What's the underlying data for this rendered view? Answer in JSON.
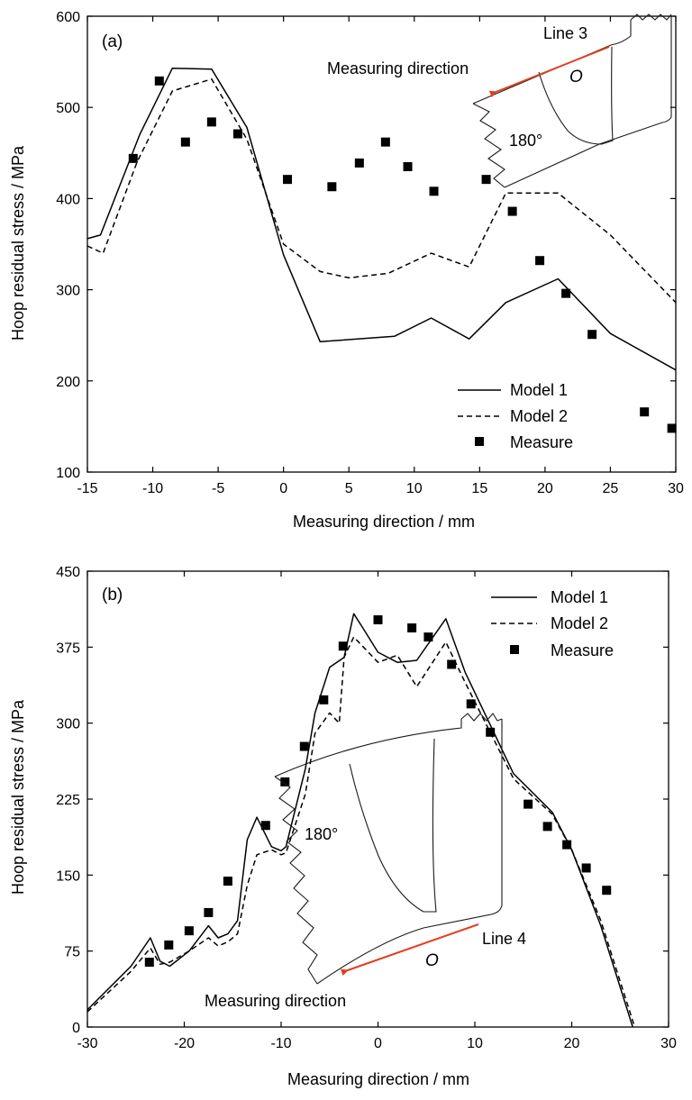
{
  "chart_data": [
    {
      "type": "line",
      "panel_label": "(a)",
      "xlabel": "Measuring direction / mm",
      "ylabel": "Hoop  residual stress / MPa",
      "xlim": [
        -15,
        30
      ],
      "ylim": [
        100,
        600
      ],
      "xticks": [
        -15,
        -10,
        -5,
        0,
        5,
        10,
        15,
        20,
        25,
        30
      ],
      "yticks": [
        100,
        200,
        300,
        400,
        500,
        600
      ],
      "grid": false,
      "legend_position": "bottom-right",
      "series": [
        {
          "name": "Model 1",
          "style": "solid",
          "x": [
            -15,
            -14,
            -11,
            -8.5,
            -5.5,
            -2.8,
            0,
            2.8,
            8.5,
            11.3,
            14.2,
            17,
            21,
            25,
            30
          ],
          "y": [
            356,
            360,
            470,
            543,
            542,
            478,
            338,
            243,
            249,
            269,
            246,
            286,
            312,
            252,
            212
          ]
        },
        {
          "name": "Model 2",
          "style": "dashed",
          "x": [
            -15,
            -13.8,
            -11.2,
            -8.5,
            -5.5,
            -2.8,
            0,
            2.8,
            5,
            8,
            11.3,
            14.2,
            17,
            21,
            25,
            30
          ],
          "y": [
            348,
            340,
            440,
            518,
            531,
            465,
            350,
            320,
            313,
            318,
            340,
            325,
            406,
            406,
            360,
            286
          ]
        },
        {
          "name": "Measure",
          "style": "markers",
          "x": [
            -11.5,
            -9.5,
            -7.5,
            -5.5,
            -3.5,
            0.3,
            3.7,
            5.8,
            7.8,
            9.5,
            11.5,
            15.5,
            17.5,
            19.6,
            21.6,
            23.6,
            27.6,
            29.7
          ],
          "y": [
            444,
            529,
            462,
            484,
            471,
            421,
            413,
            439,
            462,
            435,
            408,
            421,
            386,
            332,
            296,
            251,
            166,
            148
          ]
        }
      ],
      "inset": {
        "line_label": "Line 3",
        "direction_label": "Measuring direction",
        "angle_label": "180°",
        "origin_label": "O"
      }
    },
    {
      "type": "line",
      "panel_label": "(b)",
      "xlabel": "Measuring direction / mm",
      "ylabel": "Hoop  residual stress / MPa",
      "xlim": [
        -30,
        30
      ],
      "ylim": [
        0,
        450
      ],
      "xticks": [
        -30,
        -20,
        -10,
        0,
        10,
        20,
        30
      ],
      "yticks": [
        0,
        75,
        150,
        225,
        300,
        375,
        450
      ],
      "grid": false,
      "legend_position": "top-right",
      "series": [
        {
          "name": "Model 1",
          "style": "solid",
          "x": [
            -30,
            -25.5,
            -23.5,
            -22.5,
            -21.5,
            -19.5,
            -17.5,
            -16.5,
            -15.5,
            -14.5,
            -13.5,
            -12.5,
            -11,
            -10,
            -9.5,
            -7.5,
            -6.5,
            -5,
            -3.5,
            -2.5,
            -1.5,
            0,
            2,
            4,
            7,
            9,
            14,
            18,
            20,
            23,
            26.3
          ],
          "y": [
            17,
            60,
            88,
            65,
            60,
            75,
            100,
            88,
            92,
            105,
            185,
            207,
            178,
            174,
            178,
            255,
            310,
            355,
            365,
            408,
            393,
            370,
            360,
            362,
            403,
            350,
            250,
            212,
            175,
            100,
            0
          ]
        },
        {
          "name": "Model 2",
          "style": "dashed",
          "x": [
            -30,
            -25.5,
            -23.5,
            -22.5,
            -21.5,
            -19.5,
            -17.5,
            -16.5,
            -15.5,
            -14.5,
            -13.5,
            -12.5,
            -11,
            -10,
            -9.5,
            -7.5,
            -6.5,
            -5,
            -4,
            -3.5,
            -2.5,
            -1.5,
            0,
            2,
            4,
            7,
            9,
            14,
            18,
            20,
            23,
            26.5
          ],
          "y": [
            15,
            55,
            78,
            62,
            64,
            75,
            88,
            80,
            84,
            92,
            140,
            170,
            175,
            170,
            172,
            230,
            290,
            310,
            300,
            365,
            385,
            375,
            360,
            367,
            336,
            380,
            340,
            245,
            210,
            175,
            105,
            0
          ]
        },
        {
          "name": "Measure",
          "style": "markers",
          "x": [
            -23.6,
            -21.6,
            -19.5,
            -17.5,
            -15.5,
            -11.6,
            -9.6,
            -7.6,
            -5.6,
            -3.6,
            0,
            3.5,
            5.2,
            7.6,
            9.6,
            11.6,
            15.5,
            17.5,
            19.5,
            21.5,
            23.6
          ],
          "y": [
            64,
            81,
            95,
            113,
            144,
            199,
            242,
            277,
            323,
            376,
            402,
            394,
            385,
            358,
            319,
            291,
            220,
            198,
            180,
            157,
            135
          ]
        }
      ],
      "inset": {
        "line_label": "Line 4",
        "direction_label": "Measuring direction",
        "angle_label": "180°",
        "origin_label": "O"
      }
    }
  ],
  "colors": {
    "axis": "#000000",
    "line": "#000000",
    "arrow": "#e0401f"
  }
}
